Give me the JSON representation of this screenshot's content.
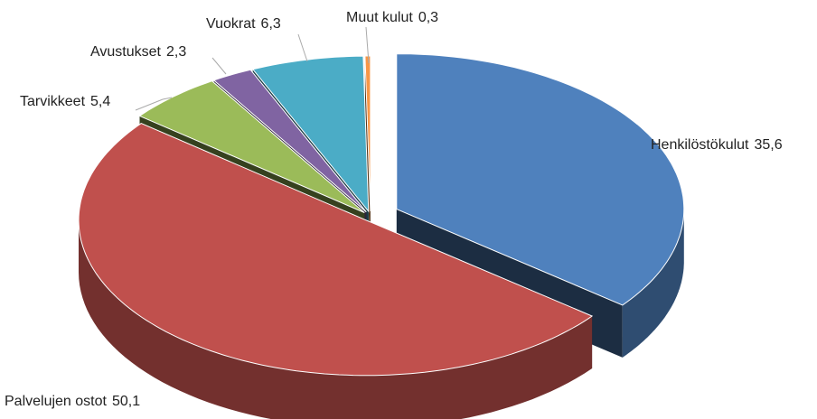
{
  "chart_data": {
    "type": "pie3d",
    "categories": [
      "Henkilöstökulut",
      "Palvelujen ostot",
      "Tarvikkeet",
      "Avustukset",
      "Vuokrat",
      "Muut kulut"
    ],
    "values": [
      35.6,
      50.1,
      5.4,
      2.3,
      6.3,
      0.3
    ],
    "value_labels": [
      "35,6",
      "50,1",
      "5,4",
      "2,3",
      "6,3",
      "0,3"
    ],
    "colors": [
      "#4f81bd",
      "#c0504d",
      "#9bbb59",
      "#8064a2",
      "#4bacc6",
      "#f79646"
    ]
  }
}
